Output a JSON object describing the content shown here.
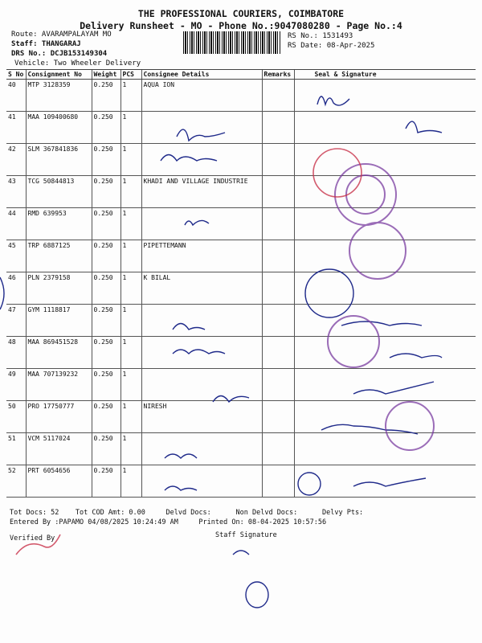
{
  "header": {
    "company": "THE PROFESSIONAL COURIERS, COIMBATORE",
    "title": "Delivery Runsheet - MO - Phone No.:9047080280 - Page No.:4",
    "route": "Route: AVARAMPALAYAM MO",
    "staff": "Staff: THANGARAJ",
    "drs": "DRS No.: DCJB153149304",
    "vehicle": "Vehicle: Two Wheeler Delivery",
    "rs_no": "RS No.: 1531493",
    "rs_date": "RS Date: 08-Apr-2025"
  },
  "columns": [
    "S No",
    "Consignment No",
    "Weight",
    "PCS",
    "Consignee Details",
    "Remarks",
    "Seal & Signature"
  ],
  "rows": [
    {
      "sno": "40",
      "cn": "MTP 3128359",
      "wt": "0.250",
      "pcs": "1",
      "consignee": "AQUA ION"
    },
    {
      "sno": "41",
      "cn": "MAA 109400680",
      "wt": "0.250",
      "pcs": "1",
      "consignee": ""
    },
    {
      "sno": "42",
      "cn": "SLM 367841836",
      "wt": "0.250",
      "pcs": "1",
      "consignee": ""
    },
    {
      "sno": "43",
      "cn": "TCG 50844813",
      "wt": "0.250",
      "pcs": "1",
      "consignee": "KHADI AND VILLAGE INDUSTRIE"
    },
    {
      "sno": "44",
      "cn": "RMD 639953",
      "wt": "0.250",
      "pcs": "1",
      "consignee": ""
    },
    {
      "sno": "45",
      "cn": "TRP 6887125",
      "wt": "0.250",
      "pcs": "1",
      "consignee": "PIPETTEMANN"
    },
    {
      "sno": "46",
      "cn": "PLN 2379158",
      "wt": "0.250",
      "pcs": "1",
      "consignee": "K BILAL"
    },
    {
      "sno": "47",
      "cn": "GYM 1118817",
      "wt": "0.250",
      "pcs": "1",
      "consignee": ""
    },
    {
      "sno": "48",
      "cn": "MAA 869451528",
      "wt": "0.250",
      "pcs": "1",
      "consignee": ""
    },
    {
      "sno": "49",
      "cn": "MAA 707139232",
      "wt": "0.250",
      "pcs": "1",
      "consignee": ""
    },
    {
      "sno": "50",
      "cn": "PRO 17750777",
      "wt": "0.250",
      "pcs": "1",
      "consignee": "NIRESH"
    },
    {
      "sno": "51",
      "cn": "VCM 5117024",
      "wt": "0.250",
      "pcs": "1",
      "consignee": ""
    },
    {
      "sno": "52",
      "cn": "PRT 6054656",
      "wt": "0.250",
      "pcs": "1",
      "consignee": ""
    }
  ],
  "footer": {
    "tot_docs": "Tot Docs:  52",
    "tot_cod": "Tot COD Amt:    0.00",
    "delvd": "Delvd Docs:",
    "non_delvd": "Non Delvd Docs:",
    "delvy_pts": "Delvy Pts:",
    "entered": "Entered By :PAPAMO 04/08/2025 10:24:49 AM",
    "printed": "Printed On: 08-04-2025 10:57:56",
    "verified": "Verified By",
    "staff_sig": "Staff Signature"
  },
  "colors": {
    "ink": "#1f2a8a",
    "stamp": "#7a3ca0",
    "stamp_red": "#c8324a"
  }
}
